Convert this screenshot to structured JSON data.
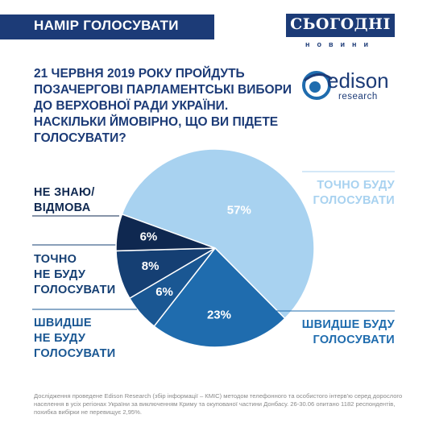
{
  "header": {
    "title": "НАМІР ГОЛОСУВАТИ",
    "brand": "СЬОГОДНІ",
    "brand_sub": "новини"
  },
  "intro": "21 ЧЕРВНЯ 2019 РОКУ ПРОЙДУТЬ\nПОЗАЧЕРГОВІ ПАРЛАМЕНТСЬКІ ВИБОРИ\nДО ВЕРХОВНОЇ РАДИ УКРАЇНИ.",
  "logo": {
    "name": "edison",
    "sub": "research"
  },
  "chart_data": {
    "type": "pie",
    "title": "НАСКІЛЬКИ ЙМОВІРНО, ЩО ВИ ПІДЕТЕ\nГОЛОСУВАТИ?",
    "categories": [
      "ТОЧНО БУДУ\nГОЛОСУВАТИ",
      "ШВИДШЕ БУДУ\nГОЛОСУВАТИ",
      "ШВИДШЕ\nНЕ БУДУ\nГОЛОСУВАТИ",
      "ТОЧНО\nНЕ БУДУ\nГОЛОСУВАТИ",
      "НЕ ЗНАЮ/\nВІДМОВА"
    ],
    "values": [
      57,
      23,
      6,
      8,
      6
    ],
    "value_labels": [
      "57%",
      "23%",
      "6%",
      "8%",
      "6%"
    ],
    "colors": [
      "#a8d2f0",
      "#1f6cae",
      "#1a5793",
      "#153f73",
      "#0f2850"
    ]
  },
  "footnote": "Дослідження проведене Edison Research (збір інформації – КМІС) методом телефонного та особистого інтерв'ю серед дорослого населення в усіх регіонах України за виключенням Криму та окупованої частини Донбасу. 26-30.06 опитано 1182 респондентів, похибка вибірки не перевищує 2,95%."
}
